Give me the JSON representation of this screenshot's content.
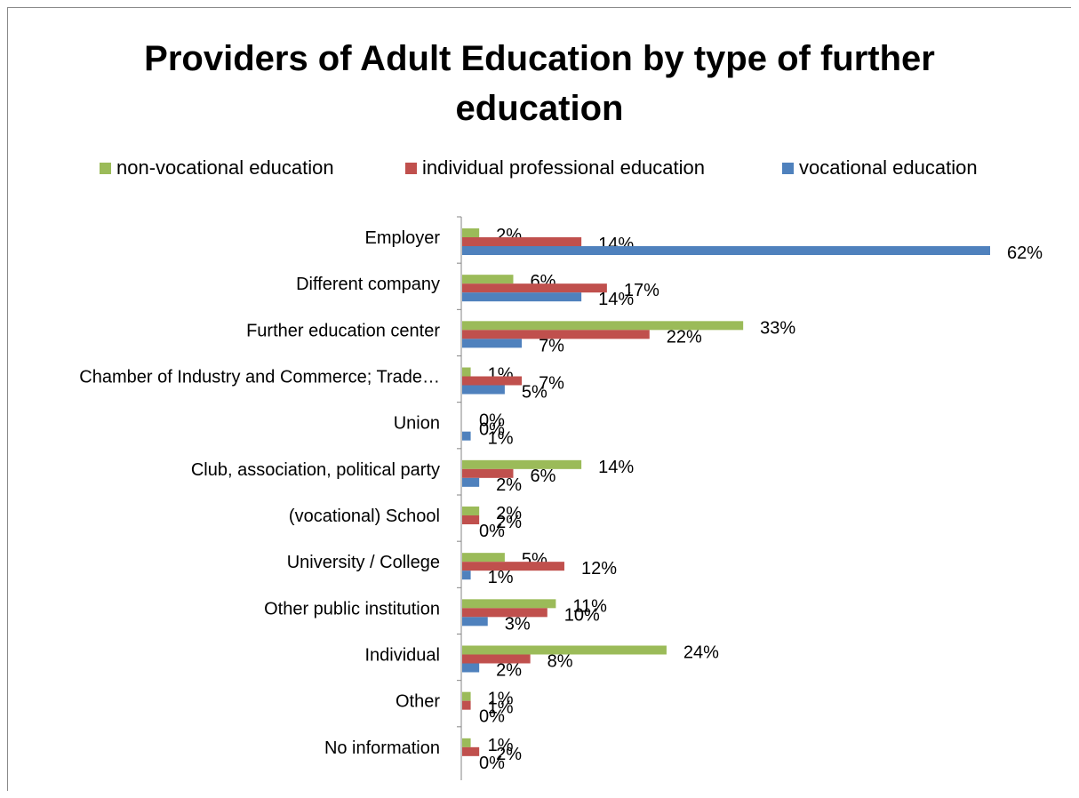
{
  "chart_data": {
    "type": "bar",
    "orientation": "horizontal",
    "title": "Providers of Adult Education by type of further education",
    "title_lines": [
      "Providers of Adult Education by type of further",
      "education"
    ],
    "legend_placement": "top",
    "grid": false,
    "categories": [
      "Employer",
      "Different company",
      "Further education center",
      "Chamber of Industry and Commerce; Trade…",
      "Union",
      "Club, association, political party",
      "(vocational) School",
      "University / College",
      "Other public institution",
      "Individual",
      "Other",
      "No information"
    ],
    "series": [
      {
        "name": "non-vocational education",
        "color": "#9bbb59",
        "values": [
          2,
          6,
          33,
          1,
          0,
          14,
          2,
          5,
          11,
          24,
          1,
          1
        ]
      },
      {
        "name": "individual professional education",
        "color": "#c0504d",
        "values": [
          14,
          17,
          22,
          7,
          0,
          6,
          2,
          12,
          10,
          8,
          1,
          2
        ]
      },
      {
        "name": "vocational education",
        "color": "#4f81bd",
        "values": [
          62,
          14,
          7,
          5,
          1,
          2,
          0,
          1,
          3,
          2,
          0,
          0
        ]
      }
    ],
    "value_suffix": "%",
    "xlim": [
      0,
      62
    ]
  }
}
